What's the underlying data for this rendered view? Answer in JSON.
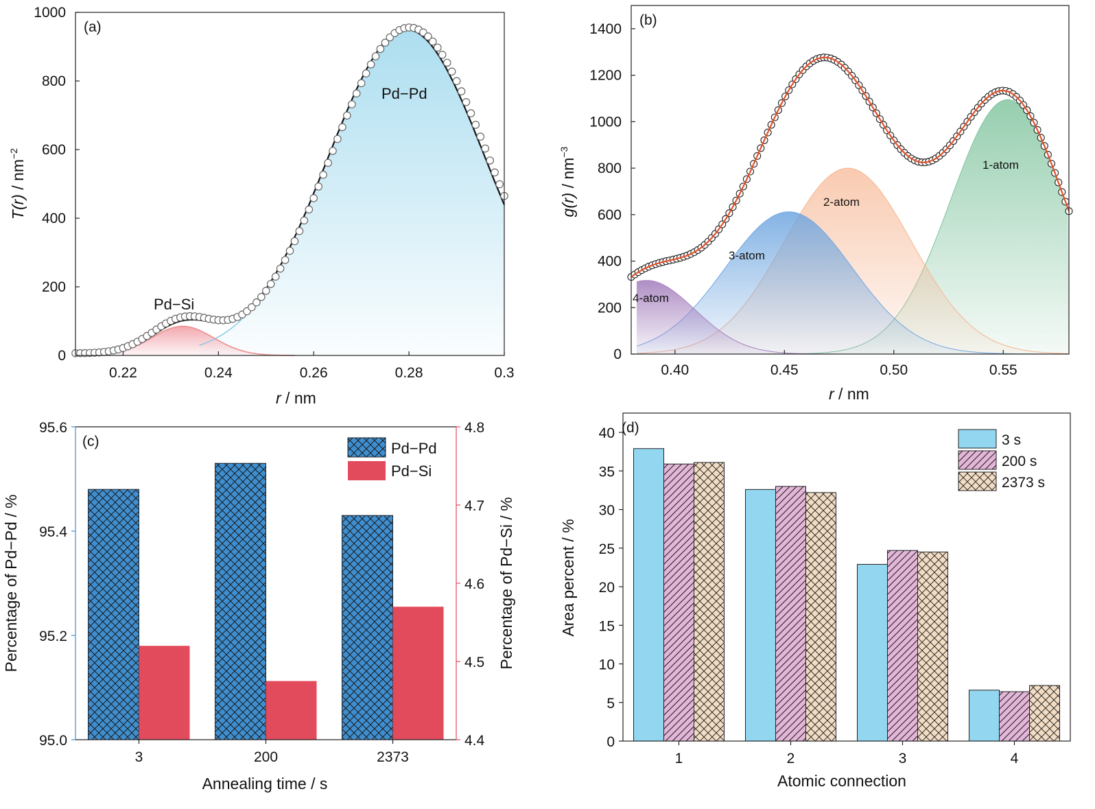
{
  "colors": {
    "pdpd_fill": "#a8dcef",
    "pdsi_fill": "#f2a4ab",
    "atom1": "#7cc29b",
    "atom2": "#f6b48f",
    "atom3": "#6fa6e0",
    "atom4": "#a682bf",
    "fit_red": "#e1502a",
    "bar_pdpd": "#3f8fd0",
    "bar_pdsi": "#e24b5c",
    "bar_3s": "#92d6f0",
    "bar_200s": "#e3b6d8",
    "bar_2373s": "#f2dcc4",
    "axis_red": "#e24b5c",
    "axis_blue": "#3f8fd0"
  },
  "panels": {
    "a": {
      "tag": "(a)",
      "xlabel_var": "r",
      "xlabel_unit": " / nm",
      "ylabel_var": "T(r)",
      "ylabel_unit": " / nm",
      "ylabel_exp": "−2",
      "xticks": [
        "0.22",
        "0.24",
        "0.26",
        "0.28",
        "0.3"
      ],
      "yticks": [
        "0",
        "200",
        "400",
        "600",
        "800",
        "1000"
      ],
      "label_pdpd": "Pd−Pd",
      "label_pdsi": "Pd−Si"
    },
    "b": {
      "tag": "(b)",
      "xlabel_var": "r",
      "xlabel_unit": " / nm",
      "ylabel_var": "g(r)",
      "ylabel_unit": " / nm",
      "ylabel_exp": "−3",
      "xticks": [
        "0.40",
        "0.45",
        "0.50",
        "0.55"
      ],
      "yticks": [
        "0",
        "200",
        "400",
        "600",
        "800",
        "1000",
        "1200",
        "1400"
      ],
      "label_1": "1-atom",
      "label_2": "2-atom",
      "label_3": "3-atom",
      "label_4": "4-atom"
    },
    "c": {
      "tag": "(c)",
      "xlabel": "Annealing time / s",
      "ylabel_left": "Percentage of Pd−Pd / %",
      "ylabel_right": "Percentage of Pd−Si / %",
      "xticks": [
        "3",
        "200",
        "2373"
      ],
      "yticks_left": [
        "95.0",
        "95.2",
        "95.4",
        "95.6"
      ],
      "yticks_right": [
        "4.4",
        "4.5",
        "4.6",
        "4.7",
        "4.8"
      ],
      "legend_pdpd": "Pd−Pd",
      "legend_pdsi": "Pd−Si"
    },
    "d": {
      "tag": "(d)",
      "xlabel": "Atomic connection",
      "ylabel": "Area percent / %",
      "xticks": [
        "1",
        "2",
        "3",
        "4"
      ],
      "yticks": [
        "0",
        "5",
        "10",
        "15",
        "20",
        "25",
        "30",
        "35",
        "40"
      ],
      "legend": [
        "3 s",
        "200 s",
        "2373 s"
      ]
    }
  },
  "chart_data": [
    {
      "panel": "a",
      "type": "line",
      "xlim": [
        0.21,
        0.3
      ],
      "ylim": [
        0,
        1000
      ],
      "peaks": {
        "pdsi": {
          "center": 0.2325,
          "height": 85,
          "width": 0.0065
        },
        "pdpd": {
          "center": 0.2795,
          "height": 950,
          "width": 0.0165
        }
      },
      "data_points_marker": "open circle"
    },
    {
      "panel": "b",
      "type": "area",
      "xlim": [
        0.38,
        0.58
      ],
      "ylim": [
        0,
        1500
      ],
      "peaks": {
        "atom1": {
          "center": 0.552,
          "height": 1095,
          "width": 0.026
        },
        "atom2": {
          "center": 0.479,
          "height": 800,
          "width": 0.029
        },
        "atom3": {
          "center": 0.452,
          "height": 612,
          "width": 0.029
        },
        "atom4": {
          "center": 0.387,
          "height": 317,
          "width": 0.022
        }
      },
      "total_curve": "sum of peaks (open circles with red fit line)"
    },
    {
      "panel": "c",
      "type": "bar",
      "categories": [
        "3",
        "200",
        "2373"
      ],
      "series": [
        {
          "name": "Pd−Pd",
          "axis": "left",
          "values": [
            95.48,
            95.53,
            95.43
          ]
        },
        {
          "name": "Pd−Si",
          "axis": "right",
          "values": [
            4.52,
            4.475,
            4.57
          ]
        }
      ],
      "ylim_left": [
        95.0,
        95.6
      ],
      "ylim_right": [
        4.4,
        4.8
      ],
      "legend_position": "top-right"
    },
    {
      "panel": "d",
      "type": "bar",
      "categories": [
        "1",
        "2",
        "3",
        "4"
      ],
      "series": [
        {
          "name": "3 s",
          "values": [
            37.9,
            32.6,
            22.9,
            6.6
          ]
        },
        {
          "name": "200 s",
          "values": [
            35.9,
            33.0,
            24.7,
            6.4
          ]
        },
        {
          "name": "2373 s",
          "values": [
            36.1,
            32.2,
            24.5,
            7.2
          ]
        }
      ],
      "ylim": [
        0,
        42.5
      ],
      "legend_position": "top-right"
    }
  ]
}
